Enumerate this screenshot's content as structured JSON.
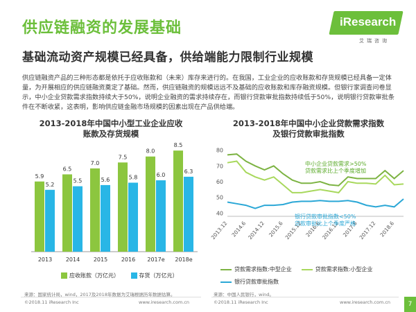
{
  "header": {
    "title": "供应链融资的发展基础",
    "subtitle": "基础流动资产规模已经具备，供给端能力限制行业规模",
    "logo_text": "iResearch",
    "logo_sub": "艾瑞咨询"
  },
  "paragraph": "供应链融资产品的三种形态都是依托于应收账款和（未来）库存来进行的。在我国，工业企业的应收账款和存货规模已经具备一定体量，为开展相应的供应链融资奠定了基础。然而，供应链融资的规模远远不及基础的应收账款和库存融资规模。但银行家调查问卷显示，中小企业贷款需求指数持续大于50%，说明企业融资的需求持续存在，而银行贷款审批指数持续低于50%，说明银行贷款审批条件在不断收紧，这表明，影响供应链金融市场规模的因素出现在产品供给端。",
  "colors": {
    "green": "#8cc63f",
    "blue": "#29b6e6",
    "accent": "#6cbf3b",
    "green_dark": "#7cb342",
    "green_light": "#a8d85c",
    "blue_line": "#2aa7d6"
  },
  "chart_data": [
    {
      "type": "bar",
      "title": "2013-2018年中国中小型工业企业应收账款及存货规模",
      "title_lines": [
        "2013-2018年中国中小型工业企业应收",
        "账款及存货规模"
      ],
      "categories": [
        "2013",
        "2014",
        "2015",
        "2016",
        "2017e",
        "2018e"
      ],
      "series": [
        {
          "name": "应收账款（万亿元）",
          "values": [
            5.9,
            6.5,
            7.0,
            7.5,
            8.0,
            8.5
          ],
          "value_labels": [
            "5.9",
            "6.5",
            "7.0",
            "7.5",
            "8.0",
            "8.5"
          ]
        },
        {
          "name": "存货（万亿元）",
          "values": [
            5.2,
            5.5,
            5.6,
            5.8,
            6.0,
            6.3
          ],
          "value_labels": [
            "5.2",
            "5.5",
            "5.6",
            "5.8",
            "6.0",
            "6.3"
          ]
        }
      ],
      "ylim": [
        0,
        9.5
      ],
      "grid": false,
      "legend_position": "bottom",
      "source": "来源：国家统计局，wind，2017及2018年数据为艾瑞根据历年数据估算。"
    },
    {
      "type": "line",
      "title": "2013-2018年中国中小企业贷款需求指数及银行贷款审批指数",
      "title_lines": [
        "2013-2018年中国中小企业贷款需求指数",
        "及银行贷款审批指数"
      ],
      "x": [
        "2013.12",
        "2014.3",
        "2014.6",
        "2014.9",
        "2014.12",
        "2015.3",
        "2015.6",
        "2015.9",
        "2015.12",
        "2016.3",
        "2016.6",
        "2016.9",
        "2016.12",
        "2017.3",
        "2017.6",
        "2017.9",
        "2017.12",
        "2018.3",
        "2018.6",
        "2018.9"
      ],
      "x_tick_labels": [
        "2013.12",
        "2014.6",
        "2014.12",
        "2015.6",
        "2015.12",
        "2016.6",
        "2016.12",
        "2017.6",
        "2017.12",
        "2018.6"
      ],
      "yticks": [
        40,
        50,
        60,
        70,
        80
      ],
      "ylim": [
        38,
        82
      ],
      "series": [
        {
          "name": "贷款需求指数:中型企业",
          "values": [
            77,
            77.5,
            73,
            70,
            67.5,
            70,
            65,
            61,
            59,
            59,
            60,
            58,
            57.5,
            63,
            62,
            62,
            62,
            67,
            62,
            67
          ]
        },
        {
          "name": "贷款需求指数:小型企业",
          "values": [
            72,
            73,
            66,
            63,
            61,
            63,
            58,
            53,
            53,
            54,
            55,
            54,
            53,
            60,
            59,
            59,
            58.5,
            64,
            58,
            58.5
          ]
        },
        {
          "name": "银行贷款审批指数",
          "values": [
            47,
            46,
            45,
            43,
            45,
            45,
            45.5,
            47,
            47.5,
            47.5,
            48,
            47.5,
            47.5,
            48,
            47,
            45,
            44,
            45,
            44,
            49
          ]
        }
      ],
      "annotations": [
        {
          "text": [
            "中小企业贷款需求>50%",
            "贷款需求比上个季度增加"
          ]
        },
        {
          "text": [
            "银行贷款审批指数<50%",
            "贷款审批比上个季度严格"
          ]
        }
      ],
      "grid": false,
      "legend_position": "bottom",
      "source": "来源：中国人民银行，wind。"
    }
  ],
  "footer": {
    "left": "©2018.11 iResearch Inc",
    "left_url": "www.iresearch.com.cn",
    "right": "©2018.11 iResearch Inc",
    "right_url": "www.iresearch.com.cn",
    "page": "7"
  }
}
